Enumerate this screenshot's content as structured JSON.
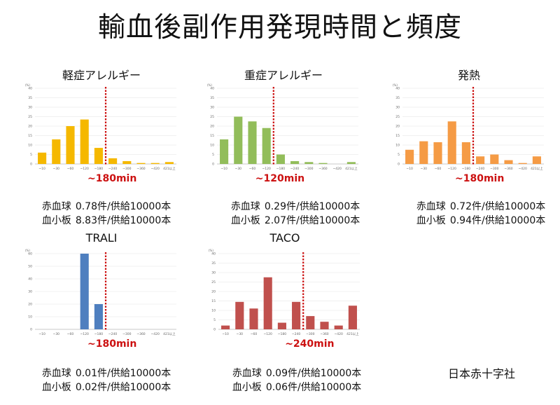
{
  "title": "輸血後副作用発現時間と頻度",
  "footer": "日本赤十字社",
  "panels": [
    {
      "title": "軽症アレルギー",
      "color": "#f5b800",
      "cutoff_label": "~180min",
      "stats": [
        {
          "label": "赤血球",
          "value": "0.78件/供給10000本"
        },
        {
          "label": "血小板",
          "value": "8.83件/供給10000本"
        }
      ]
    },
    {
      "title": "重症アレルギー",
      "color": "#92bd5a",
      "cutoff_label": "~120min",
      "stats": [
        {
          "label": "赤血球",
          "value": "0.29件/供給10000本"
        },
        {
          "label": "血小板",
          "value": "2.07件/供給10000本"
        }
      ]
    },
    {
      "title": "発熱",
      "color": "#f59b45",
      "cutoff_label": "~180min",
      "stats": [
        {
          "label": "赤血球",
          "value": "0.72件/供給10000本"
        },
        {
          "label": "血小板",
          "value": "0.94件/供給10000本"
        }
      ]
    },
    {
      "title": "TRALI",
      "color": "#4f7fbf",
      "cutoff_label": "~180min",
      "stats": [
        {
          "label": "赤血球",
          "value": "0.01件/供給10000本"
        },
        {
          "label": "血小板",
          "value": "0.02件/供給10000本"
        }
      ]
    },
    {
      "title": "TACO",
      "color": "#c0504d",
      "cutoff_label": "~240min",
      "stats": [
        {
          "label": "赤血球",
          "value": "0.09件/供給10000本"
        },
        {
          "label": "血小板",
          "value": "0.06件/供給10000本"
        }
      ]
    }
  ],
  "chart_data": [
    {
      "type": "bar",
      "title": "軽症アレルギー",
      "ylabel": "(%)",
      "ylim": [
        0,
        40
      ],
      "yticks": [
        0,
        5,
        10,
        15,
        20,
        25,
        30,
        35,
        40
      ],
      "categories": [
        "~10",
        "~30",
        "~60",
        "~120",
        "~180",
        "~240",
        "~300",
        "~360",
        "~420",
        "421以上"
      ],
      "values": [
        6,
        13,
        20,
        23.5,
        8.5,
        3,
        1.5,
        0.5,
        0.5,
        1
      ],
      "cutoff_after_index": 4,
      "cutoff_label": "~180min",
      "grid": true
    },
    {
      "type": "bar",
      "title": "重症アレルギー",
      "ylabel": "(%)",
      "ylim": [
        0,
        40
      ],
      "yticks": [
        0,
        5,
        10,
        15,
        20,
        25,
        30,
        35,
        40
      ],
      "categories": [
        "~10",
        "~30",
        "~60",
        "~120",
        "~180",
        "~240",
        "~300",
        "~360",
        "~420",
        "421以上"
      ],
      "values": [
        13,
        25,
        22.5,
        19,
        5,
        1.5,
        1,
        0.5,
        0,
        1
      ],
      "cutoff_after_index": 3,
      "cutoff_label": "~120min",
      "grid": true
    },
    {
      "type": "bar",
      "title": "発熱",
      "ylabel": "(%)",
      "ylim": [
        0,
        40
      ],
      "yticks": [
        0,
        5,
        10,
        15,
        20,
        25,
        30,
        35,
        40
      ],
      "categories": [
        "~10",
        "~30",
        "~60",
        "~120",
        "~180",
        "~240",
        "~300",
        "~360",
        "~420",
        "421以上"
      ],
      "values": [
        7.5,
        12,
        11.5,
        22.5,
        11.5,
        4,
        5,
        2,
        0.5,
        4
      ],
      "cutoff_after_index": 4,
      "cutoff_label": "~180min",
      "grid": true
    },
    {
      "type": "bar",
      "title": "TRALI",
      "ylabel": "(%)",
      "ylim": [
        0,
        60
      ],
      "yticks": [
        0,
        10,
        20,
        30,
        40,
        50,
        60
      ],
      "categories": [
        "~10",
        "~30",
        "~60",
        "~120",
        "~180",
        "~240",
        "~300",
        "~360",
        "~420",
        "421以上"
      ],
      "values": [
        0,
        0,
        0,
        60,
        20,
        0,
        0,
        0,
        0,
        0
      ],
      "cutoff_after_index": 4,
      "cutoff_label": "~180min",
      "grid": true
    },
    {
      "type": "bar",
      "title": "TACO",
      "ylabel": "(%)",
      "ylim": [
        0,
        40
      ],
      "yticks": [
        0,
        5,
        10,
        15,
        20,
        25,
        30,
        35,
        40
      ],
      "categories": [
        "~10",
        "~30",
        "~60",
        "~120",
        "~180",
        "~240",
        "~300",
        "~360",
        "~420",
        "421以上"
      ],
      "values": [
        2,
        14.5,
        11,
        27.5,
        3.5,
        14.5,
        7,
        4,
        2,
        12.5
      ],
      "cutoff_after_index": 5,
      "cutoff_label": "~240min",
      "grid": true
    }
  ]
}
